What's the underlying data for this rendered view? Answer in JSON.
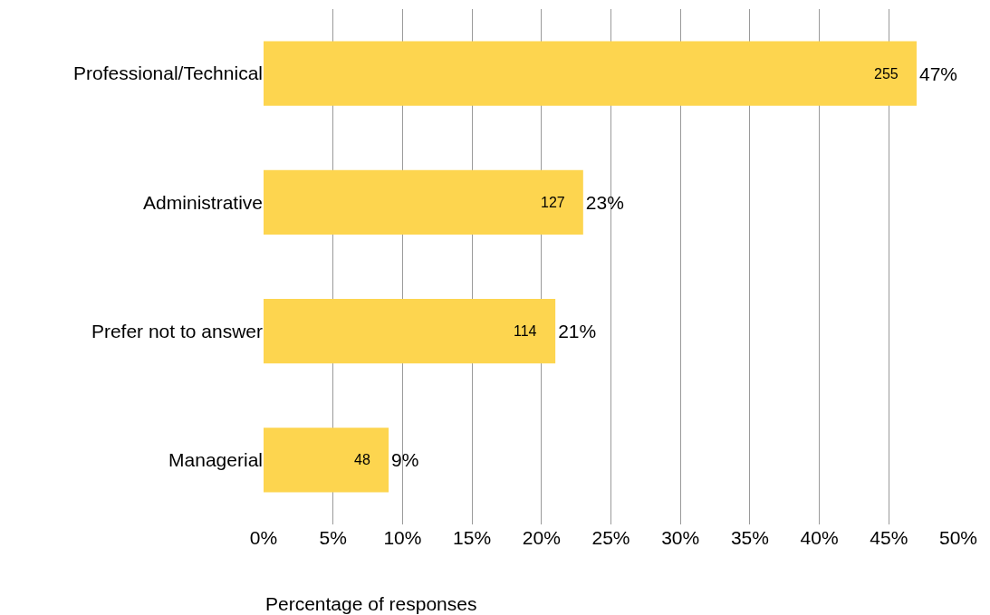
{
  "chart_data": {
    "type": "bar",
    "orientation": "horizontal",
    "xlabel": "Percentage of responses",
    "categories": [
      "Professional/Technical",
      "Administrative",
      "Prefer not to answer",
      "Managerial"
    ],
    "values": [
      47,
      23,
      21,
      9
    ],
    "color": "#fdd54f",
    "value_labels": [
      "47%",
      "23%",
      "21%",
      "9%"
    ],
    "annotations": [
      "255",
      "127",
      "114",
      "48"
    ],
    "xlim": [
      0,
      50
    ],
    "xticks": [
      {
        "value": 0,
        "label": "0%"
      },
      {
        "value": 5,
        "label": "5%"
      },
      {
        "value": 10,
        "label": "10%"
      },
      {
        "value": 15,
        "label": "15%"
      },
      {
        "value": 20,
        "label": "20%"
      },
      {
        "value": 25,
        "label": "25%"
      },
      {
        "value": 30,
        "label": "30%"
      },
      {
        "value": 35,
        "label": "35%"
      },
      {
        "value": 40,
        "label": "40%"
      },
      {
        "value": 45,
        "label": "45%"
      },
      {
        "value": 50,
        "label": "50%"
      }
    ],
    "grid": "x",
    "legend": false
  }
}
